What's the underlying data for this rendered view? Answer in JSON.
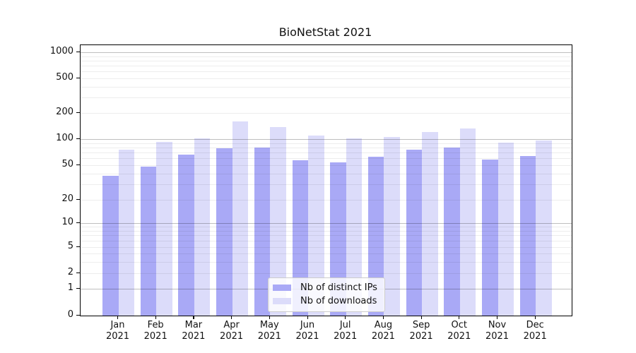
{
  "chart_data": {
    "type": "bar",
    "title": "BioNetStat 2021",
    "categories": [
      "Jan",
      "Feb",
      "Mar",
      "Apr",
      "May",
      "Jun",
      "Jul",
      "Aug",
      "Sep",
      "Oct",
      "Nov",
      "Dec"
    ],
    "year_label": "2021",
    "series": [
      {
        "name": "Nb of distinct IPs",
        "color": "#a9a9f6",
        "values": [
          38,
          48,
          66,
          78,
          80,
          57,
          54,
          63,
          76,
          80,
          58,
          64
        ]
      },
      {
        "name": "Nb of downloads",
        "color": "#dcdcfa",
        "values": [
          76,
          92,
          102,
          160,
          138,
          110,
          101,
          106,
          120,
          133,
          91,
          97
        ]
      }
    ],
    "xlabel": "",
    "ylabel": "",
    "yscale": "symlog",
    "yticks": [
      0,
      1,
      2,
      5,
      10,
      20,
      50,
      100,
      200,
      500,
      1000
    ],
    "ylim": [
      0,
      1000
    ],
    "grid": "on",
    "legend_position": "lower-center"
  }
}
